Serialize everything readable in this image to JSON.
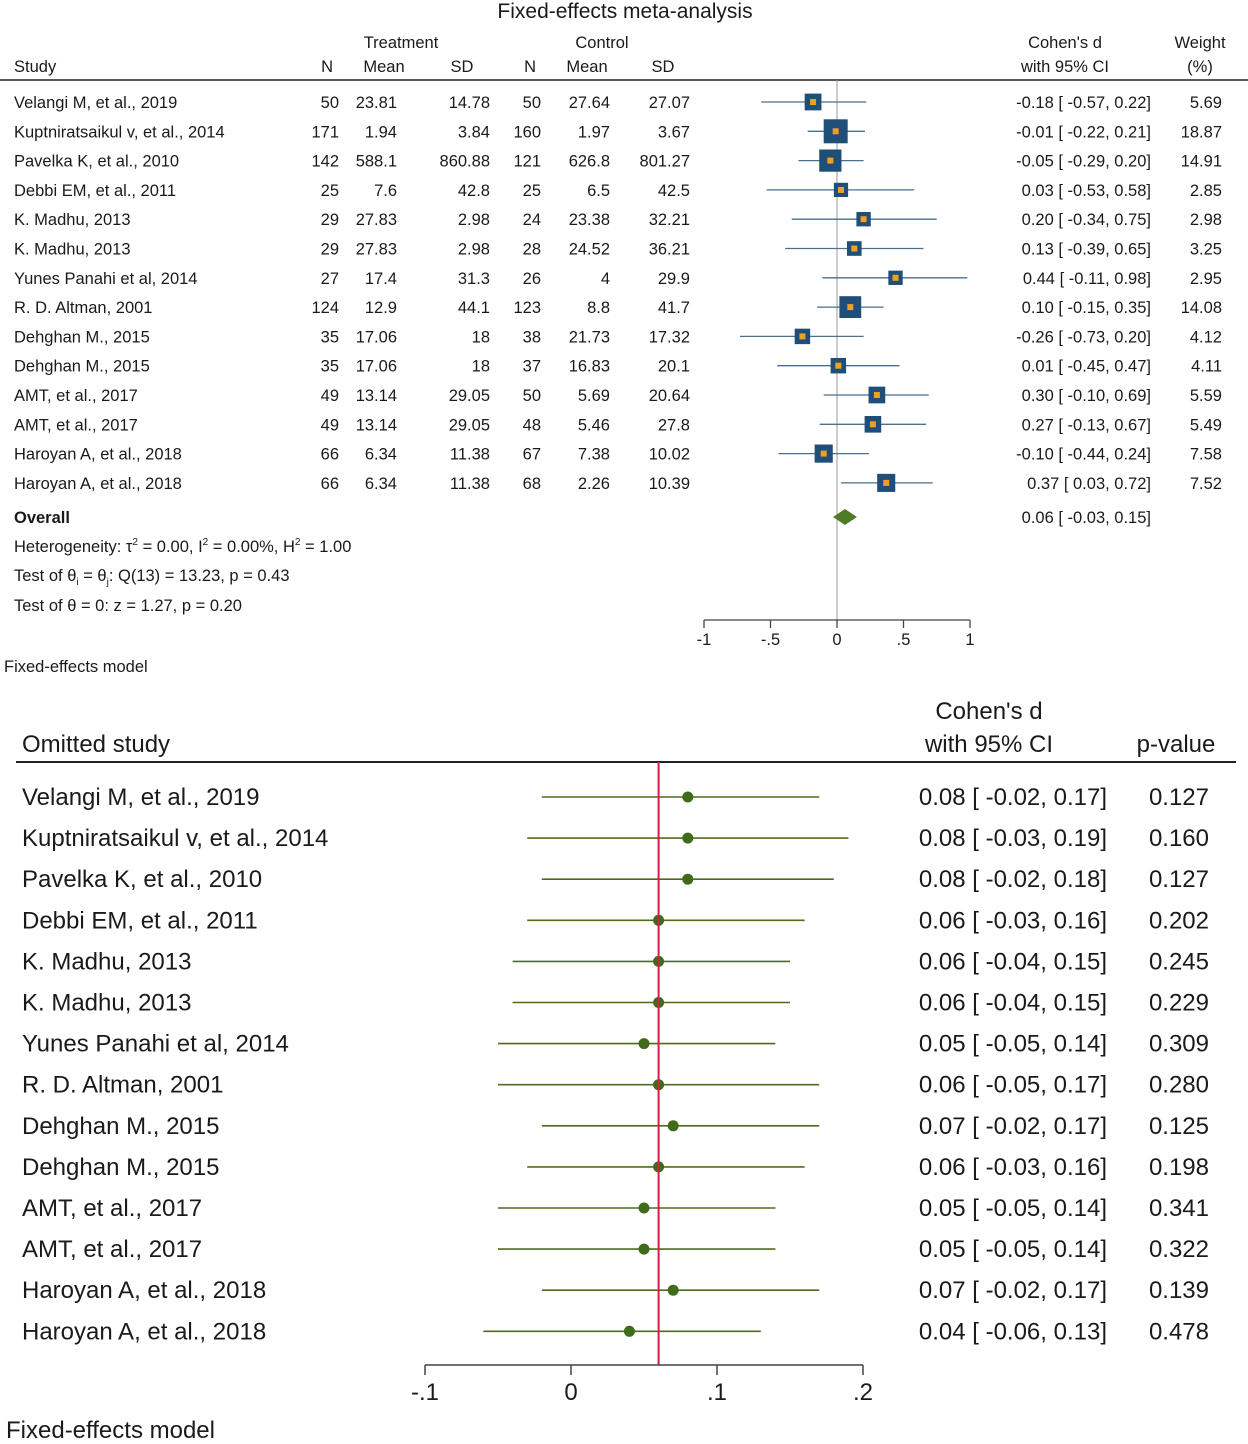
{
  "chart_data": [
    {
      "type": "forest",
      "title": "Fixed-effects meta-analysis",
      "column_groups": [
        "Treatment",
        "Control"
      ],
      "columns": {
        "study": "Study",
        "n": "N",
        "mean": "Mean",
        "sd": "SD",
        "effect_line1": "Cohen's d",
        "effect_line2": "with 95% CI",
        "weight_line1": "Weight",
        "weight_line2": "(%)"
      },
      "rows": [
        {
          "study": "Velangi M, et al., 2019",
          "t_n": "50",
          "t_mean": "23.81",
          "t_sd": "14.78",
          "c_n": "50",
          "c_mean": "27.64",
          "c_sd": "27.07",
          "d": -0.18,
          "lo": -0.57,
          "hi": 0.22,
          "weight": 5.69,
          "ci_text": "-0.18 [ -0.57,  0.22]",
          "weight_text": "5.69"
        },
        {
          "study": "Kuptniratsaikul v, et al., 2014",
          "t_n": "171",
          "t_mean": "1.94",
          "t_sd": "3.84",
          "c_n": "160",
          "c_mean": "1.97",
          "c_sd": "3.67",
          "d": -0.01,
          "lo": -0.22,
          "hi": 0.21,
          "weight": 18.87,
          "ci_text": "-0.01 [ -0.22,  0.21]",
          "weight_text": "18.87"
        },
        {
          "study": "Pavelka K, et al., 2010",
          "t_n": "142",
          "t_mean": "588.1",
          "t_sd": "860.88",
          "c_n": "121",
          "c_mean": "626.8",
          "c_sd": "801.27",
          "d": -0.05,
          "lo": -0.29,
          "hi": 0.2,
          "weight": 14.91,
          "ci_text": "-0.05 [ -0.29,  0.20]",
          "weight_text": "14.91"
        },
        {
          "study": "Debbi EM, et al., 2011",
          "t_n": "25",
          "t_mean": "7.6",
          "t_sd": "42.8",
          "c_n": "25",
          "c_mean": "6.5",
          "c_sd": "42.5",
          "d": 0.03,
          "lo": -0.53,
          "hi": 0.58,
          "weight": 2.85,
          "ci_text": "0.03 [ -0.53,  0.58]",
          "weight_text": "2.85"
        },
        {
          "study": "K. Madhu, 2013",
          "t_n": "29",
          "t_mean": "27.83",
          "t_sd": "2.98",
          "c_n": "24",
          "c_mean": "23.38",
          "c_sd": "32.21",
          "d": 0.2,
          "lo": -0.34,
          "hi": 0.75,
          "weight": 2.98,
          "ci_text": "0.20 [ -0.34,  0.75]",
          "weight_text": "2.98"
        },
        {
          "study": "K. Madhu, 2013",
          "t_n": "29",
          "t_mean": "27.83",
          "t_sd": "2.98",
          "c_n": "28",
          "c_mean": "24.52",
          "c_sd": "36.21",
          "d": 0.13,
          "lo": -0.39,
          "hi": 0.65,
          "weight": 3.25,
          "ci_text": "0.13 [ -0.39,  0.65]",
          "weight_text": "3.25"
        },
        {
          "study": "Yunes Panahi et al, 2014",
          "t_n": "27",
          "t_mean": "17.4",
          "t_sd": "31.3",
          "c_n": "26",
          "c_mean": "4",
          "c_sd": "29.9",
          "d": 0.44,
          "lo": -0.11,
          "hi": 0.98,
          "weight": 2.95,
          "ci_text": "0.44 [ -0.11,  0.98]",
          "weight_text": "2.95"
        },
        {
          "study": "R. D. Altman, 2001",
          "t_n": "124",
          "t_mean": "12.9",
          "t_sd": "44.1",
          "c_n": "123",
          "c_mean": "8.8",
          "c_sd": "41.7",
          "d": 0.1,
          "lo": -0.15,
          "hi": 0.35,
          "weight": 14.08,
          "ci_text": "0.10 [ -0.15,  0.35]",
          "weight_text": "14.08"
        },
        {
          "study": "Dehghan M., 2015",
          "t_n": "35",
          "t_mean": "17.06",
          "t_sd": "18",
          "c_n": "38",
          "c_mean": "21.73",
          "c_sd": "17.32",
          "d": -0.26,
          "lo": -0.73,
          "hi": 0.2,
          "weight": 4.12,
          "ci_text": "-0.26 [ -0.73,  0.20]",
          "weight_text": "4.12"
        },
        {
          "study": "Dehghan M., 2015",
          "t_n": "35",
          "t_mean": "17.06",
          "t_sd": "18",
          "c_n": "37",
          "c_mean": "16.83",
          "c_sd": "20.1",
          "d": 0.01,
          "lo": -0.45,
          "hi": 0.47,
          "weight": 4.11,
          "ci_text": "0.01 [ -0.45,  0.47]",
          "weight_text": "4.11"
        },
        {
          "study": "AMT, et al., 2017",
          "t_n": "49",
          "t_mean": "13.14",
          "t_sd": "29.05",
          "c_n": "50",
          "c_mean": "5.69",
          "c_sd": "20.64",
          "d": 0.3,
          "lo": -0.1,
          "hi": 0.69,
          "weight": 5.59,
          "ci_text": "0.30 [ -0.10,  0.69]",
          "weight_text": "5.59"
        },
        {
          "study": "AMT, et al., 2017",
          "t_n": "49",
          "t_mean": "13.14",
          "t_sd": "29.05",
          "c_n": "48",
          "c_mean": "5.46",
          "c_sd": "27.8",
          "d": 0.27,
          "lo": -0.13,
          "hi": 0.67,
          "weight": 5.49,
          "ci_text": "0.27 [ -0.13,  0.67]",
          "weight_text": "5.49"
        },
        {
          "study": "Haroyan A, et al., 2018",
          "t_n": "66",
          "t_mean": "6.34",
          "t_sd": "11.38",
          "c_n": "67",
          "c_mean": "7.38",
          "c_sd": "10.02",
          "d": -0.1,
          "lo": -0.44,
          "hi": 0.24,
          "weight": 7.58,
          "ci_text": "-0.10 [ -0.44,  0.24]",
          "weight_text": "7.58"
        },
        {
          "study": "Haroyan A, et al., 2018",
          "t_n": "66",
          "t_mean": "6.34",
          "t_sd": "11.38",
          "c_n": "68",
          "c_mean": "2.26",
          "c_sd": "10.39",
          "d": 0.37,
          "lo": 0.03,
          "hi": 0.72,
          "weight": 7.52,
          "ci_text": "0.37 [  0.03,  0.72]",
          "weight_text": "7.52"
        }
      ],
      "overall": {
        "label": "Overall",
        "d": 0.06,
        "lo": -0.03,
        "hi": 0.15,
        "ci_text": "0.06 [ -0.03,  0.15]"
      },
      "heterogeneity": {
        "prefix": "Heterogeneity: τ",
        "tau_val": " = 0.00, I",
        "i_val": " = 0.00%, H",
        "h_val": " = 1.00",
        "sup": "2"
      },
      "tests": [
        {
          "pre": "Test of θ",
          "sub1": "i",
          "mid": " = θ",
          "sub2": "j",
          "post": ": Q(13) = 13.23, p = 0.43"
        },
        {
          "text": "Test of θ = 0: z = 1.27, p = 0.20"
        }
      ],
      "x_axis": {
        "min": -1,
        "max": 1,
        "ticks": [
          -1,
          -0.5,
          0,
          0.5,
          1
        ],
        "tick_labels": [
          "-1",
          "-.5",
          "0",
          ".5",
          "1"
        ]
      },
      "model_note": "Fixed-effects model"
    },
    {
      "type": "forest",
      "title": "",
      "columns": {
        "study": "Omitted study",
        "effect_line1": "Cohen's d",
        "effect_line2": "with 95% CI",
        "pvalue": "p-value"
      },
      "rows": [
        {
          "study": "Velangi M, et al., 2019",
          "d": 0.08,
          "lo": -0.02,
          "hi": 0.17,
          "ci_text": "0.08 [ -0.02,  0.17]",
          "p": "0.127"
        },
        {
          "study": "Kuptniratsaikul v, et al., 2014",
          "d": 0.08,
          "lo": -0.03,
          "hi": 0.19,
          "ci_text": "0.08 [ -0.03,  0.19]",
          "p": "0.160"
        },
        {
          "study": "Pavelka K, et al., 2010",
          "d": 0.08,
          "lo": -0.02,
          "hi": 0.18,
          "ci_text": "0.08 [ -0.02,  0.18]",
          "p": "0.127"
        },
        {
          "study": "Debbi EM, et al., 2011",
          "d": 0.06,
          "lo": -0.03,
          "hi": 0.16,
          "ci_text": "0.06 [ -0.03,  0.16]",
          "p": "0.202"
        },
        {
          "study": "K. Madhu, 2013",
          "d": 0.06,
          "lo": -0.04,
          "hi": 0.15,
          "ci_text": "0.06 [ -0.04,  0.15]",
          "p": "0.245"
        },
        {
          "study": "K. Madhu, 2013",
          "d": 0.06,
          "lo": -0.04,
          "hi": 0.15,
          "ci_text": "0.06 [ -0.04,  0.15]",
          "p": "0.229"
        },
        {
          "study": "Yunes Panahi et al, 2014",
          "d": 0.05,
          "lo": -0.05,
          "hi": 0.14,
          "ci_text": "0.05 [ -0.05,  0.14]",
          "p": "0.309"
        },
        {
          "study": "R. D. Altman, 2001",
          "d": 0.06,
          "lo": -0.05,
          "hi": 0.17,
          "ci_text": "0.06 [ -0.05,  0.17]",
          "p": "0.280"
        },
        {
          "study": "Dehghan M., 2015",
          "d": 0.07,
          "lo": -0.02,
          "hi": 0.17,
          "ci_text": "0.07 [ -0.02,  0.17]",
          "p": "0.125"
        },
        {
          "study": "Dehghan M., 2015",
          "d": 0.06,
          "lo": -0.03,
          "hi": 0.16,
          "ci_text": "0.06 [ -0.03,  0.16]",
          "p": "0.198"
        },
        {
          "study": "AMT, et al., 2017",
          "d": 0.05,
          "lo": -0.05,
          "hi": 0.14,
          "ci_text": "0.05 [ -0.05,  0.14]",
          "p": "0.341"
        },
        {
          "study": "AMT, et al., 2017",
          "d": 0.05,
          "lo": -0.05,
          "hi": 0.14,
          "ci_text": "0.05 [ -0.05,  0.14]",
          "p": "0.322"
        },
        {
          "study": "Haroyan A, et al., 2018",
          "d": 0.07,
          "lo": -0.02,
          "hi": 0.17,
          "ci_text": "0.07 [ -0.02,  0.17]",
          "p": "0.139"
        },
        {
          "study": "Haroyan A, et al., 2018",
          "d": 0.04,
          "lo": -0.06,
          "hi": 0.13,
          "ci_text": "0.04 [ -0.06,  0.13]",
          "p": "0.478"
        }
      ],
      "reference_value": 0.06,
      "x_axis": {
        "min": -0.1,
        "max": 0.2,
        "ticks": [
          -0.1,
          0,
          0.1,
          0.2
        ],
        "tick_labels": [
          "-.1",
          "0",
          ".1",
          ".2"
        ]
      },
      "model_note": "Fixed-effects model"
    }
  ],
  "colors": {
    "ci_line_top": "#4a6f8f",
    "box_fill": "#1f4e79",
    "box_dot": "#f0a020",
    "diamond": "#4f7a28",
    "ci_line_bottom": "#4f6b1e",
    "point_bottom": "#3f6b1a",
    "ref_line": "#d21f4a",
    "text": "#1a1a1a",
    "axis": "#444444"
  }
}
